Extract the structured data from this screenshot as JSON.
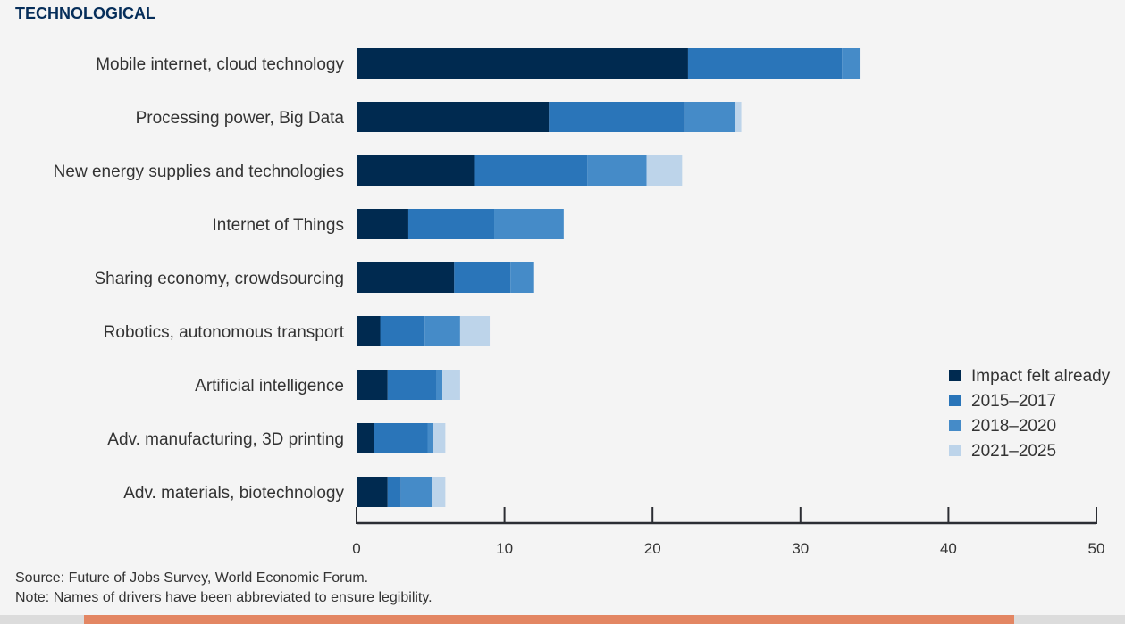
{
  "section_title": "TECHNOLOGICAL",
  "chart_data": {
    "type": "bar",
    "orientation": "horizontal",
    "stacked": true,
    "title": "TECHNOLOGICAL",
    "xlabel": "",
    "ylabel": "",
    "xlim": [
      0,
      50
    ],
    "xticks": [
      0,
      10,
      20,
      30,
      40,
      50
    ],
    "grid": false,
    "legend_position": "bottom-right",
    "categories": [
      "Mobile internet, cloud technology",
      "Processing power, Big Data",
      "New energy supplies and technologies",
      "Internet of Things",
      "Sharing economy, crowdsourcing",
      "Robotics, autonomous transport",
      "Artificial intelligence",
      "Adv. manufacturing, 3D printing",
      "Adv. materials, biotechnology"
    ],
    "series": [
      {
        "name": "Impact felt already",
        "color": "#002a50",
        "values": [
          22.4,
          13.0,
          8.0,
          3.5,
          6.6,
          1.6,
          2.1,
          1.2,
          2.1
        ]
      },
      {
        "name": "2015–2017",
        "color": "#2a75b9",
        "values": [
          10.4,
          9.2,
          7.6,
          5.8,
          3.8,
          3.0,
          3.3,
          3.6,
          0.9
        ]
      },
      {
        "name": "2018–2020",
        "color": "#458bc8",
        "values": [
          1.2,
          3.4,
          4.0,
          4.7,
          1.6,
          2.4,
          0.4,
          0.4,
          2.1
        ]
      },
      {
        "name": "2021–2025",
        "color": "#bdd4ea",
        "values": [
          0,
          0.4,
          2.4,
          0,
          0,
          2.0,
          1.2,
          0.8,
          0.9
        ]
      }
    ]
  },
  "footnotes": {
    "source": "Source: Future of Jobs Survey, World Economic Forum.",
    "note": "Note: Names of drivers have been abbreviated to ensure legibility."
  },
  "colors": {
    "accent_bar": "#e38663",
    "title": "#062e5a"
  }
}
